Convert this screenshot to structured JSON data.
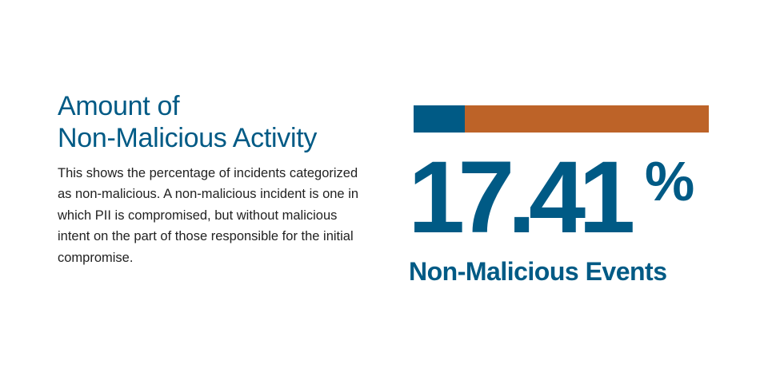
{
  "title_lines": [
    "Amount of",
    "Non-Malicious Activity"
  ],
  "description": "This shows the percentage of incidents categorized as non-malicious. A non-malicious incident is one in which PII is compromised, but without malicious intent on the part of those responsible for the initial compromise.",
  "statistic": {
    "number": "17.41",
    "percent_sign": "%",
    "caption": "Non-Malicious Events",
    "fraction": 0.1741
  },
  "colors": {
    "blue": "#005a85",
    "orange": "#bd6328",
    "text": "#222222"
  }
}
